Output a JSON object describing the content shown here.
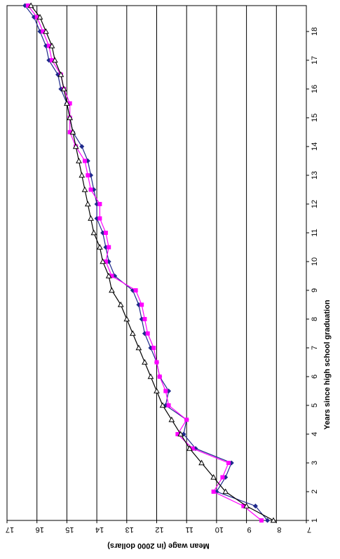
{
  "chart_data": {
    "type": "line",
    "title": "",
    "xlabel": "Years since high school graduation",
    "ylabel": "Mean wage (in 2000 dollars)",
    "xlim": [
      1,
      18.9
    ],
    "ylim": [
      7,
      17
    ],
    "x_ticks": [
      "1",
      "2",
      "3",
      "4",
      "5",
      "6",
      "7",
      "8",
      "9",
      "10",
      "11",
      "12",
      "13",
      "14",
      "15",
      "16",
      "17",
      "18"
    ],
    "y_ticks": [
      "7",
      "8",
      "9",
      "10",
      "11",
      "12",
      "13",
      "14",
      "15",
      "16",
      "17"
    ],
    "grid": "horizontal",
    "orientation": "rotated 90 degrees clockwise",
    "legend": "none",
    "x": [
      1,
      1.5,
      2,
      2.5,
      3,
      3.5,
      4,
      4.5,
      5,
      5.5,
      6,
      6.5,
      7,
      7.5,
      8,
      8.5,
      9,
      9.5,
      10,
      10.5,
      11,
      11.5,
      12,
      12.5,
      13,
      13.5,
      14,
      14.5,
      15,
      15.5,
      16,
      16.5,
      17,
      17.5,
      18,
      18.5,
      18.9
    ],
    "series": [
      {
        "color": "#1f2a8c",
        "marker": "diamond",
        "values": [
          8.3,
          8.7,
          10.0,
          9.7,
          9.5,
          10.7,
          11.1,
          11.0,
          11.7,
          11.6,
          11.9,
          12.0,
          12.2,
          12.4,
          12.5,
          12.6,
          12.8,
          13.4,
          13.6,
          13.7,
          13.8,
          14.0,
          14.0,
          14.1,
          14.2,
          14.3,
          14.5,
          14.8,
          14.9,
          15.0,
          15.2,
          15.3,
          15.6,
          15.7,
          15.9,
          16.1,
          16.4
        ]
      },
      {
        "color": "#ff00ff",
        "marker": "square",
        "values": [
          8.5,
          9.1,
          10.1,
          9.8,
          9.6,
          10.8,
          11.3,
          11.0,
          11.6,
          11.7,
          11.9,
          12.0,
          12.1,
          12.3,
          12.4,
          12.5,
          12.7,
          13.5,
          13.7,
          13.6,
          13.7,
          13.9,
          13.9,
          14.2,
          14.3,
          14.4,
          14.7,
          14.9,
          14.9,
          14.9,
          15.1,
          15.2,
          15.5,
          15.6,
          15.8,
          16.0,
          16.3
        ]
      },
      {
        "color": "#000000",
        "marker": "triangle-open",
        "values": [
          8.1,
          9.0,
          9.7,
          10.1,
          10.5,
          10.9,
          11.2,
          11.5,
          11.8,
          12.0,
          12.2,
          12.4,
          12.6,
          12.8,
          13.0,
          13.2,
          13.5,
          13.6,
          13.8,
          13.9,
          14.1,
          14.2,
          14.3,
          14.4,
          14.5,
          14.6,
          14.7,
          14.8,
          14.9,
          15.0,
          15.1,
          15.2,
          15.4,
          15.5,
          15.7,
          15.9,
          16.2
        ]
      }
    ]
  }
}
